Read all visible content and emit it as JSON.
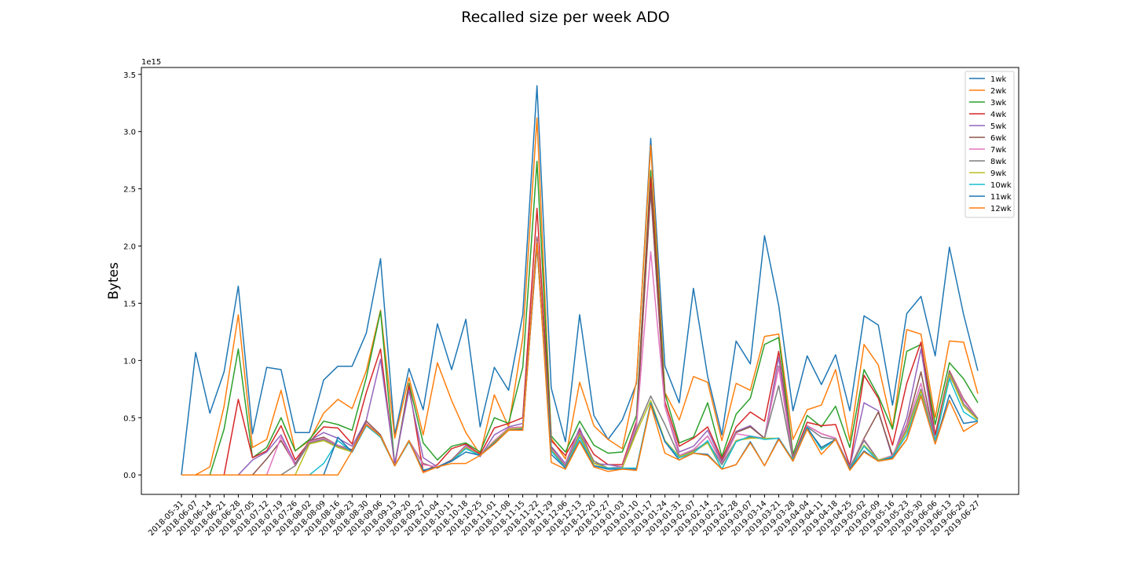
{
  "chart_data": {
    "type": "line",
    "title": "Recalled size per week ADO",
    "xlabel": "",
    "ylabel": "Bytes",
    "y_scale_label": "1e15",
    "ylim": [
      -0.17,
      3.56
    ],
    "y_ticks": [
      "0.0",
      "0.5",
      "1.0",
      "1.5",
      "2.0",
      "2.5",
      "3.0",
      "3.5"
    ],
    "y_tick_values": [
      0.0,
      0.5,
      1.0,
      1.5,
      2.0,
      2.5,
      3.0,
      3.5
    ],
    "grid": false,
    "legend_position": "top-right",
    "x": [
      "2018-05-31",
      "2018-06-07",
      "2018-06-14",
      "2018-06-21",
      "2018-06-28",
      "2018-07-05",
      "2018-07-12",
      "2018-07-19",
      "2018-07-26",
      "2018-08-02",
      "2018-08-09",
      "2018-08-16",
      "2018-08-23",
      "2018-08-30",
      "2018-09-06",
      "2018-09-13",
      "2018-09-20",
      "2018-09-27",
      "2018-10-04",
      "2018-10-11",
      "2018-10-18",
      "2018-10-25",
      "2018-11-01",
      "2018-11-08",
      "2018-11-15",
      "2018-11-22",
      "2018-11-29",
      "2018-12-06",
      "2018-12-13",
      "2018-12-20",
      "2018-12-27",
      "2019-01-03",
      "2019-01-10",
      "2019-01-17",
      "2019-01-24",
      "2019-01-31",
      "2019-02-07",
      "2019-02-14",
      "2019-02-21",
      "2019-02-28",
      "2019-03-07",
      "2019-03-14",
      "2019-03-21",
      "2019-03-28",
      "2019-04-04",
      "2019-04-11",
      "2019-04-18",
      "2019-04-25",
      "2019-05-02",
      "2019-05-09",
      "2019-05-16",
      "2019-05-23",
      "2019-05-30",
      "2019-06-06",
      "2019-06-13",
      "2019-06-20",
      "2019-06-27"
    ],
    "series": [
      {
        "name": "1wk",
        "color": "#1f77b4",
        "values": [
          0,
          1.07,
          0.54,
          0.9,
          1.65,
          0.36,
          0.94,
          0.92,
          0.37,
          0.37,
          0.83,
          0.95,
          0.95,
          1.24,
          1.89,
          0.35,
          0.93,
          0.57,
          1.32,
          0.92,
          1.36,
          0.42,
          0.94,
          0.74,
          1.4,
          3.4,
          0.76,
          0.29,
          1.4,
          0.52,
          0.31,
          0.48,
          0.8,
          2.94,
          0.95,
          0.63,
          1.63,
          0.86,
          0.35,
          1.17,
          0.97,
          2.09,
          1.48,
          0.56,
          1.04,
          0.79,
          1.05,
          0.56,
          1.39,
          1.31,
          0.61,
          1.41,
          1.56,
          1.04,
          1.99,
          1.4,
          0.91
        ]
      },
      {
        "name": "2wk",
        "color": "#ff7f0e",
        "values": [
          0,
          0,
          0.07,
          0.6,
          1.4,
          0.24,
          0.31,
          0.74,
          0.21,
          0.3,
          0.54,
          0.66,
          0.58,
          0.91,
          1.44,
          0.32,
          0.85,
          0.35,
          0.98,
          0.65,
          0.37,
          0.18,
          0.7,
          0.42,
          1.2,
          3.12,
          0.32,
          0.14,
          0.81,
          0.43,
          0.31,
          0.23,
          0.82,
          2.88,
          0.72,
          0.48,
          0.86,
          0.81,
          0.3,
          0.8,
          0.74,
          1.21,
          1.23,
          0.31,
          0.57,
          0.61,
          0.92,
          0.3,
          1.14,
          0.96,
          0.41,
          1.27,
          1.23,
          0.5,
          1.17,
          1.16,
          0.71
        ]
      },
      {
        "name": "3wk",
        "color": "#2ca02c",
        "values": [
          0,
          0,
          0,
          0.4,
          1.1,
          0.15,
          0.24,
          0.5,
          0.21,
          0.31,
          0.47,
          0.44,
          0.39,
          0.85,
          1.43,
          0.09,
          0.8,
          0.28,
          0.13,
          0.25,
          0.28,
          0.2,
          0.5,
          0.45,
          0.94,
          2.74,
          0.34,
          0.2,
          0.47,
          0.26,
          0.19,
          0.2,
          0.52,
          2.66,
          0.71,
          0.28,
          0.33,
          0.63,
          0.16,
          0.53,
          0.67,
          1.14,
          1.2,
          0.18,
          0.52,
          0.42,
          0.6,
          0.24,
          0.92,
          0.69,
          0.4,
          1.08,
          1.14,
          0.44,
          0.98,
          0.84,
          0.63
        ]
      },
      {
        "name": "4wk",
        "color": "#d62728",
        "values": [
          0,
          0,
          0,
          0,
          0.66,
          0.15,
          0.21,
          0.43,
          0.13,
          0.29,
          0.42,
          0.41,
          0.27,
          0.72,
          1.1,
          0.08,
          0.78,
          0.03,
          0.09,
          0.23,
          0.27,
          0.18,
          0.41,
          0.45,
          0.5,
          2.33,
          0.3,
          0.17,
          0.39,
          0.18,
          0.09,
          0.09,
          0.47,
          2.6,
          0.64,
          0.25,
          0.32,
          0.42,
          0.14,
          0.42,
          0.55,
          0.47,
          1.08,
          0.15,
          0.46,
          0.43,
          0.44,
          0.08,
          0.87,
          0.67,
          0.26,
          0.8,
          1.16,
          0.35,
          0.91,
          0.66,
          0.49
        ]
      },
      {
        "name": "5wk",
        "color": "#9467bd",
        "values": [
          0,
          0,
          0,
          0,
          0,
          0.13,
          0.2,
          0.35,
          0.1,
          0.3,
          0.37,
          0.32,
          0.25,
          0.48,
          1.01,
          0.1,
          0.74,
          0.15,
          0.07,
          0.13,
          0.26,
          0.16,
          0.35,
          0.42,
          0.45,
          2.08,
          0.25,
          0.1,
          0.41,
          0.1,
          0.09,
          0.07,
          0.45,
          2.48,
          0.6,
          0.2,
          0.25,
          0.39,
          0.12,
          0.38,
          0.43,
          0.32,
          1.03,
          0.14,
          0.43,
          0.36,
          0.32,
          0.07,
          0.63,
          0.56,
          0.15,
          0.5,
          1.1,
          0.3,
          0.86,
          0.65,
          0.49
        ]
      },
      {
        "name": "6wk",
        "color": "#8c564b",
        "values": [
          0,
          0,
          0,
          0,
          0,
          0,
          0.14,
          0.3,
          0.09,
          0.3,
          0.33,
          0.26,
          0.22,
          0.47,
          0.35,
          0.08,
          0.3,
          0.1,
          0.06,
          0.13,
          0.25,
          0.17,
          0.3,
          0.41,
          0.42,
          2.07,
          0.24,
          0.08,
          0.37,
          0.12,
          0.06,
          0.07,
          0.43,
          2.5,
          0.6,
          0.17,
          0.22,
          0.34,
          0.11,
          0.37,
          0.42,
          0.32,
          0.95,
          0.13,
          0.43,
          0.36,
          0.32,
          0.06,
          0.32,
          0.55,
          0.17,
          0.44,
          0.9,
          0.29,
          0.9,
          0.66,
          0.49
        ]
      },
      {
        "name": "7wk",
        "color": "#e377c2",
        "values": [
          0,
          0,
          0,
          0,
          0,
          0,
          0,
          0.33,
          0.08,
          0.29,
          0.32,
          0.26,
          0.21,
          0.45,
          0.34,
          0.08,
          0.3,
          0.09,
          0.07,
          0.12,
          0.25,
          0.17,
          0.3,
          0.41,
          0.42,
          2.04,
          0.23,
          0.09,
          0.37,
          0.12,
          0.06,
          0.07,
          0.43,
          1.95,
          0.6,
          0.17,
          0.22,
          0.34,
          0.1,
          0.36,
          0.34,
          0.32,
          0.94,
          0.13,
          0.43,
          0.36,
          0.32,
          0.06,
          0.31,
          0.13,
          0.17,
          0.43,
          0.8,
          0.29,
          0.9,
          0.65,
          0.49
        ]
      },
      {
        "name": "8wk",
        "color": "#7f7f7f",
        "values": [
          0,
          0,
          0,
          0,
          0,
          0,
          0,
          0,
          0.08,
          0.28,
          0.31,
          0.25,
          0.21,
          0.44,
          0.34,
          0.08,
          0.3,
          0.04,
          0.07,
          0.12,
          0.24,
          0.17,
          0.29,
          0.4,
          0.41,
          2.02,
          0.22,
          0.08,
          0.36,
          0.12,
          0.06,
          0.06,
          0.4,
          0.69,
          0.44,
          0.16,
          0.21,
          0.29,
          0.09,
          0.3,
          0.33,
          0.32,
          0.78,
          0.13,
          0.42,
          0.33,
          0.31,
          0.06,
          0.3,
          0.13,
          0.16,
          0.4,
          0.75,
          0.29,
          0.9,
          0.62,
          0.49
        ]
      },
      {
        "name": "9wk",
        "color": "#bcbd22",
        "values": [
          0,
          0,
          0,
          0,
          0,
          0,
          0,
          0,
          0,
          0.27,
          0.3,
          0.24,
          0.2,
          0.44,
          0.33,
          0.08,
          0.29,
          0.04,
          0.07,
          0.12,
          0.24,
          0.17,
          0.29,
          0.4,
          0.41,
          2.0,
          0.22,
          0.06,
          0.35,
          0.1,
          0.06,
          0.06,
          0.37,
          0.65,
          0.3,
          0.16,
          0.2,
          0.28,
          0.05,
          0.3,
          0.32,
          0.32,
          0.32,
          0.13,
          0.41,
          0.23,
          0.31,
          0.05,
          0.26,
          0.13,
          0.16,
          0.38,
          0.73,
          0.29,
          0.88,
          0.6,
          0.48
        ]
      },
      {
        "name": "10wk",
        "color": "#17becf",
        "values": [
          0,
          0,
          0,
          0,
          0,
          0,
          0,
          0,
          0,
          0,
          0.1,
          0.3,
          0.2,
          0.43,
          0.33,
          0.08,
          0.29,
          0.04,
          0.07,
          0.12,
          0.23,
          0.17,
          0.28,
          0.39,
          0.4,
          2.0,
          0.21,
          0.06,
          0.33,
          0.08,
          0.06,
          0.06,
          0.06,
          0.63,
          0.29,
          0.15,
          0.19,
          0.3,
          0.05,
          0.29,
          0.34,
          0.31,
          0.32,
          0.13,
          0.42,
          0.22,
          0.31,
          0.05,
          0.25,
          0.12,
          0.16,
          0.35,
          0.7,
          0.3,
          0.84,
          0.55,
          0.47
        ]
      },
      {
        "name": "11wk",
        "color": "#1f77b4",
        "values": [
          0,
          0,
          0,
          0,
          0,
          0,
          0,
          0,
          0,
          0,
          0,
          0.33,
          0.2,
          0.44,
          0.34,
          0.08,
          0.3,
          0.04,
          0.07,
          0.12,
          0.2,
          0.17,
          0.28,
          0.39,
          0.4,
          2.01,
          0.18,
          0.06,
          0.3,
          0.08,
          0.05,
          0.05,
          0.05,
          0.62,
          0.29,
          0.13,
          0.19,
          0.18,
          0.05,
          0.09,
          0.29,
          0.08,
          0.32,
          0.12,
          0.41,
          0.24,
          0.31,
          0.05,
          0.21,
          0.12,
          0.15,
          0.31,
          0.69,
          0.27,
          0.7,
          0.45,
          0.47
        ]
      },
      {
        "name": "12wk",
        "color": "#ff7f0e",
        "values": [
          0,
          0,
          0,
          0,
          0,
          0,
          0,
          0,
          0,
          0,
          0,
          0,
          0.21,
          0.44,
          0.34,
          0.08,
          0.3,
          0.02,
          0.07,
          0.1,
          0.1,
          0.17,
          0.27,
          0.39,
          0.39,
          2.03,
          0.11,
          0.05,
          0.29,
          0.07,
          0.03,
          0.05,
          0.04,
          0.61,
          0.19,
          0.13,
          0.19,
          0.17,
          0.05,
          0.09,
          0.28,
          0.08,
          0.31,
          0.12,
          0.4,
          0.18,
          0.31,
          0.04,
          0.2,
          0.12,
          0.14,
          0.31,
          0.69,
          0.27,
          0.65,
          0.38,
          0.46
        ]
      }
    ]
  }
}
